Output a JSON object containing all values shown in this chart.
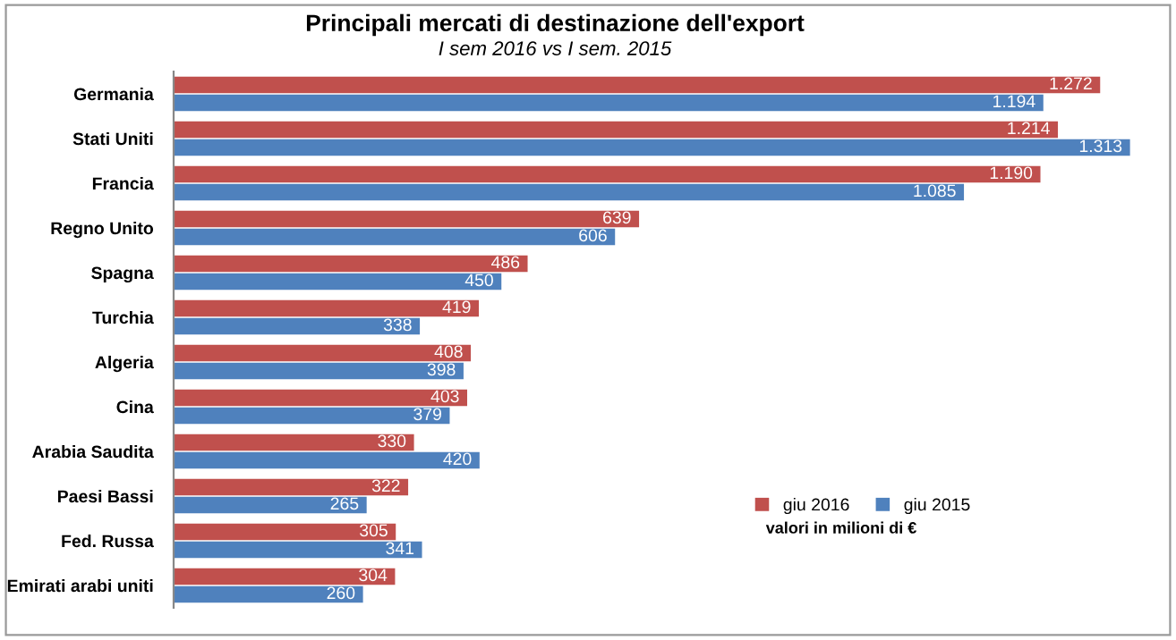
{
  "chart_data": {
    "type": "bar",
    "orientation": "horizontal",
    "title": "Principali mercati di destinazione dell'export",
    "subtitle": "I sem 2016 vs I sem. 2015",
    "categories": [
      "Germania",
      "Stati Uniti",
      "Francia",
      "Regno Unito",
      "Spagna",
      "Turchia",
      "Algeria",
      "Cina",
      "Arabia Saudita",
      "Paesi Bassi",
      "Fed. Russa",
      "Emirati arabi uniti"
    ],
    "series": [
      {
        "name": "giu 2016",
        "color": "#c0504d",
        "values": [
          1272,
          1214,
          1190,
          639,
          486,
          419,
          408,
          403,
          330,
          322,
          305,
          304
        ],
        "value_labels": [
          "1.272",
          "1.214",
          "1.190",
          "639",
          "486",
          "419",
          "408",
          "403",
          "330",
          "322",
          "305",
          "304"
        ]
      },
      {
        "name": "giu 2015",
        "color": "#4f81bd",
        "values": [
          1194,
          1313,
          1085,
          606,
          450,
          338,
          398,
          379,
          420,
          265,
          341,
          260
        ],
        "value_labels": [
          "1.194",
          "1.313",
          "1.085",
          "606",
          "450",
          "338",
          "398",
          "379",
          "420",
          "265",
          "341",
          "260"
        ]
      }
    ],
    "annotations": [
      "valori in milioni di €"
    ],
    "legend": "right",
    "grid": false
  }
}
